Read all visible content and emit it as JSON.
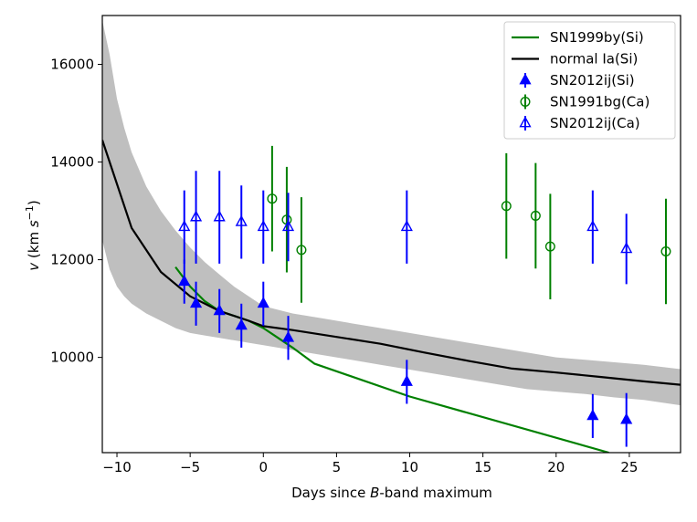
{
  "chart_data": {
    "type": "scatter",
    "xlabel": {
      "pre": "Days since ",
      "italic": "B",
      "post": "-band maximum"
    },
    "ylabel": {
      "italic": "v",
      "pre": " (km ",
      "s": "s",
      "sup": "−1",
      "post": ")"
    },
    "xlim": [
      -11,
      28.5
    ],
    "ylim": [
      8050,
      17000
    ],
    "xticks": [
      -10,
      -5,
      0,
      5,
      10,
      15,
      20,
      25
    ],
    "xtick_labels": [
      "−10",
      "−5",
      "0",
      "5",
      "10",
      "15",
      "20",
      "25"
    ],
    "yticks": [
      10000,
      12000,
      14000,
      16000
    ],
    "ytick_labels": [
      "10000",
      "12000",
      "14000",
      "16000"
    ],
    "grid": false,
    "legend_position": "top-right",
    "band": {
      "color": "#bfbfbf",
      "x": [
        -11,
        -10.5,
        -10,
        -9.5,
        -9,
        -8,
        -7,
        -6,
        -5,
        -4,
        -3,
        -2,
        -1,
        0,
        2,
        4,
        6,
        8,
        10,
        12,
        14,
        16,
        18,
        20,
        22,
        24,
        26,
        28.5
      ],
      "upper": [
        16900,
        16200,
        15300,
        14700,
        14200,
        13500,
        13000,
        12600,
        12250,
        11950,
        11700,
        11450,
        11250,
        11050,
        10900,
        10800,
        10700,
        10600,
        10500,
        10400,
        10300,
        10200,
        10100,
        10000,
        9950,
        9900,
        9850,
        9760
      ],
      "lower": [
        12400,
        11800,
        11450,
        11250,
        11100,
        10900,
        10750,
        10600,
        10500,
        10450,
        10400,
        10350,
        10300,
        10250,
        10150,
        10050,
        9950,
        9850,
        9750,
        9650,
        9550,
        9450,
        9350,
        9300,
        9250,
        9180,
        9130,
        9020
      ]
    },
    "series": [
      {
        "name": "SN1999by(Si)",
        "kind": "line",
        "color": "#008000",
        "x": [
          -6,
          -5,
          -4,
          -3,
          -2,
          -1,
          0,
          1,
          2,
          3.5,
          10,
          23.6
        ],
        "y": [
          11850,
          11450,
          11150,
          10950,
          10850,
          10750,
          10600,
          10400,
          10200,
          9870,
          9200,
          8050
        ]
      },
      {
        "name": "normal Ia(Si)",
        "kind": "line",
        "color": "#000000",
        "x": [
          -11,
          -9,
          -7,
          -5,
          -3,
          -1,
          0,
          2,
          5,
          8,
          11,
          14,
          17,
          20,
          23,
          26,
          28.5
        ],
        "y": [
          14450,
          12650,
          11750,
          11250,
          10950,
          10750,
          10640,
          10560,
          10420,
          10280,
          10100,
          9930,
          9770,
          9690,
          9600,
          9510,
          9440
        ]
      },
      {
        "name": "SN2012ij(Si)",
        "kind": "marker",
        "marker": "triangle-filled",
        "color": "#0000ff",
        "x": [
          -5.4,
          -4.6,
          -3.0,
          -1.5,
          0.0,
          1.7,
          9.8,
          22.5,
          24.8
        ],
        "y": [
          11550,
          11100,
          10950,
          10650,
          11100,
          10400,
          9500,
          8800,
          8720
        ],
        "err": [
          450,
          450,
          450,
          450,
          450,
          450,
          450,
          450,
          550
        ]
      },
      {
        "name": "SN1991bg(Ca)",
        "kind": "marker",
        "marker": "circle-open",
        "color": "#008000",
        "x": [
          0.6,
          1.6,
          2.6,
          16.6,
          18.6,
          19.6,
          27.5
        ],
        "y": [
          13250,
          12820,
          12200,
          13100,
          12900,
          12270,
          12170
        ],
        "err": [
          1080,
          1080,
          1080,
          1080,
          1080,
          1080,
          1080
        ]
      },
      {
        "name": "SN2012ij(Ca)",
        "kind": "marker",
        "marker": "triangle-open",
        "color": "#0000ff",
        "x": [
          -5.4,
          -4.6,
          -3.0,
          -1.5,
          0.0,
          1.7,
          9.8,
          22.5,
          24.8
        ],
        "y": [
          12670,
          12870,
          12870,
          12770,
          12670,
          12670,
          12670,
          12670,
          12220
        ],
        "err": [
          750,
          950,
          950,
          750,
          750,
          700,
          750,
          750,
          720
        ]
      }
    ]
  }
}
